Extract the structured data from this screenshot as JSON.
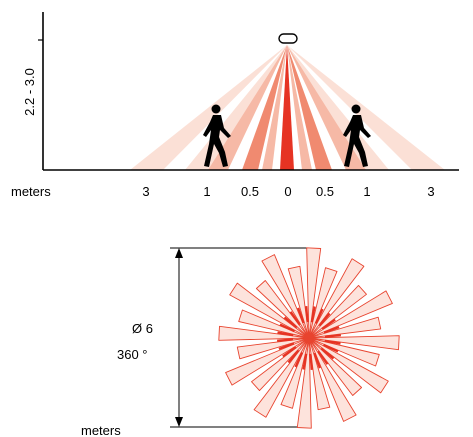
{
  "side_view": {
    "height_label": "2.2 - 3.0",
    "axis_unit": "meters",
    "distance_ticks": [
      "3",
      "1",
      "0.5",
      "0",
      "0.5",
      "1",
      "3"
    ],
    "sensor_icon": "sensor-dome-icon",
    "person_icon": "walking-person-icon"
  },
  "top_view": {
    "diameter_label": "Ø 6",
    "angle_label": "360 °",
    "unit_label": "meters"
  },
  "colors": {
    "zone_far": "#fbe0d6",
    "zone_mid": "#f6b9a6",
    "zone_near": "#f08a70",
    "zone_center": "#e63323",
    "ray_fill": "#fde3dc",
    "ray_stroke": "#e8442f",
    "ray_accent": "#e63323",
    "line": "#000000"
  }
}
